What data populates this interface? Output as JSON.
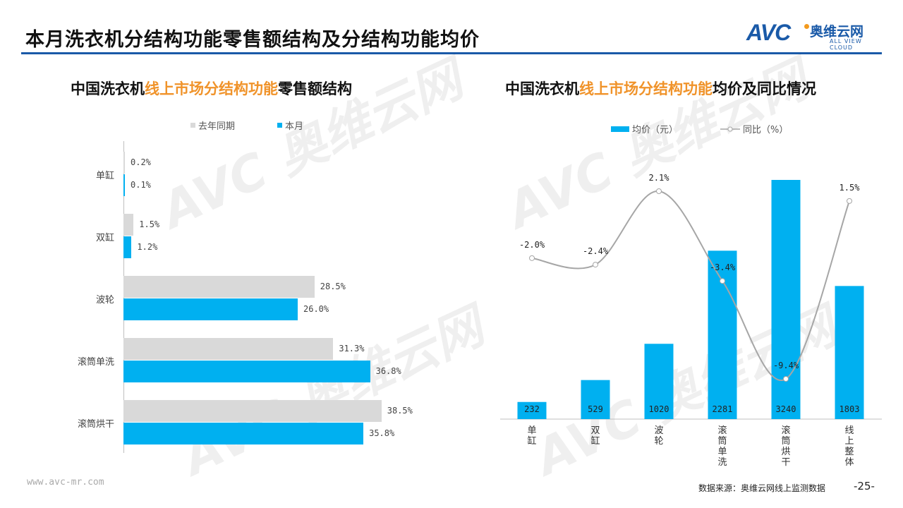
{
  "title": "本月洗衣机分结构功能零售额结构及分结构功能均价",
  "logo": {
    "brand": "AVC",
    "cn": "奥维云网",
    "en": "ALL VIEW CLOUD"
  },
  "watermark": "AVC 奥维云网 ALL VIEW CLOUD",
  "footer": {
    "url": "www.avc-mr.com",
    "source": "数据来源：奥维云网线上监测数据",
    "page": "-25-"
  },
  "chart_data": [
    {
      "type": "bar",
      "orientation": "horizontal",
      "title_parts": [
        "中国洗衣机",
        "线上市场分结构功能",
        "零售额结构"
      ],
      "categories": [
        "单缸",
        "双缸",
        "波轮",
        "滚筒单洗",
        "滚筒烘干"
      ],
      "series": [
        {
          "name": "去年同期",
          "color": "#d9d9d9",
          "values": [
            0.2,
            1.5,
            28.5,
            31.3,
            38.5
          ],
          "labels": [
            "0.2%",
            "1.5%",
            "28.5%",
            "31.3%",
            "38.5%"
          ]
        },
        {
          "name": "本月",
          "color": "#00b0f0",
          "values": [
            0.1,
            1.2,
            26.0,
            36.8,
            35.8
          ],
          "labels": [
            "0.1%",
            "1.2%",
            "26.0%",
            "36.8%",
            "35.8%"
          ]
        }
      ],
      "unit": "%",
      "legend": "top"
    },
    {
      "type": "bar+line",
      "title_parts": [
        "中国洗衣机",
        "线上市场分结构功能",
        "均价及同比情况"
      ],
      "categories": [
        "单缸",
        "双缸",
        "波轮",
        "滚筒单洗",
        "滚筒烘干",
        "线上整体"
      ],
      "series": [
        {
          "name": "均价（元）",
          "type": "bar",
          "color": "#00b0f0",
          "values": [
            232,
            529,
            1020,
            2281,
            3240,
            1803
          ],
          "labels": [
            "232",
            "529",
            "1020",
            "2281",
            "3240",
            "1803"
          ]
        },
        {
          "name": "同比（%）",
          "type": "line",
          "color": "#a6a6a6",
          "values": [
            -2.0,
            -2.4,
            2.1,
            -3.4,
            -9.4,
            1.5
          ],
          "labels": [
            "-2.0%",
            "-2.4%",
            "2.1%",
            "-3.4%",
            "-9.4%",
            "1.5%"
          ]
        }
      ],
      "legend": "top"
    }
  ]
}
